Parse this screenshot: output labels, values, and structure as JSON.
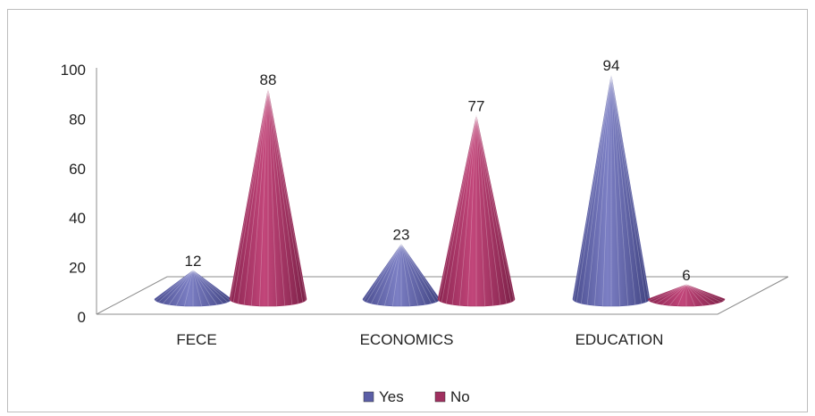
{
  "chart_data": {
    "type": "bar",
    "subtype": "3d-cone",
    "categories": [
      "FECE",
      "ECONOMICS",
      "EDUCATION"
    ],
    "series": [
      {
        "name": "Yes",
        "values": [
          12,
          23,
          94
        ],
        "color": "#5b5ea6"
      },
      {
        "name": "No",
        "values": [
          88,
          77,
          6
        ],
        "color": "#a0305f"
      }
    ],
    "ylim": [
      0,
      100
    ],
    "yticks": [
      "0",
      "20",
      "40",
      "60",
      "80",
      "100"
    ],
    "legend_position": "bottom",
    "grid": false
  }
}
